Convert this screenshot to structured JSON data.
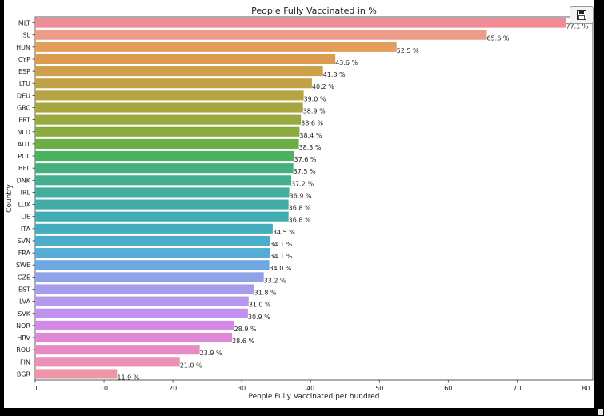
{
  "toolbar": {
    "save_icon": "floppy-disk-icon"
  },
  "chart_data": {
    "type": "bar",
    "orientation": "horizontal",
    "title": "People Fully Vaccinated in %",
    "xlabel": "People Fully Vaccinated per hundred",
    "ylabel": "Country",
    "xlim": [
      0,
      81
    ],
    "xticks": [
      0,
      10,
      20,
      30,
      40,
      50,
      60,
      70,
      80
    ],
    "value_suffix": " %",
    "categories": [
      "MLT",
      "ISL",
      "HUN",
      "CYP",
      "ESP",
      "LTU",
      "DEU",
      "GRC",
      "PRT",
      "NLD",
      "AUT",
      "POL",
      "BEL",
      "DNK",
      "IRL",
      "LUX",
      "LIE",
      "ITA",
      "SVN",
      "FRA",
      "SWE",
      "CZE",
      "EST",
      "LVA",
      "SVK",
      "NOR",
      "HRV",
      "ROU",
      "FIN",
      "BGR"
    ],
    "values": [
      77.1,
      65.6,
      52.5,
      43.6,
      41.8,
      40.2,
      39.0,
      38.9,
      38.6,
      38.4,
      38.3,
      37.6,
      37.5,
      37.2,
      36.9,
      36.8,
      36.8,
      34.5,
      34.1,
      34.1,
      34.0,
      33.2,
      31.8,
      31.0,
      30.9,
      28.9,
      28.6,
      23.9,
      21.0,
      11.9
    ],
    "colors": [
      "#f08c96",
      "#ec9c88",
      "#e39f5a",
      "#dc9c4f",
      "#cfa04a",
      "#c1a145",
      "#b5a442",
      "#a7a63f",
      "#9aa83e",
      "#8aab3d",
      "#6aaf45",
      "#4bb35e",
      "#46b17c",
      "#43af8e",
      "#42ae9b",
      "#41ada6",
      "#41acb1",
      "#45acbd",
      "#4aadca",
      "#55acd6",
      "#6ea8e2",
      "#8fa4e8",
      "#a59ded",
      "#b597ee",
      "#c290ee",
      "#d18ae8",
      "#df88d8",
      "#e78bc6",
      "#eb90b6",
      "#ee96a8"
    ],
    "grid": false,
    "legend": "none"
  }
}
